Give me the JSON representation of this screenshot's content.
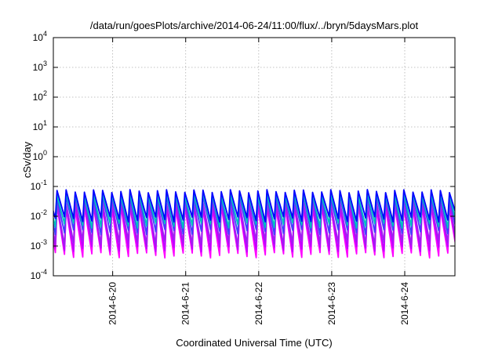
{
  "chart_data": {
    "type": "line",
    "title": "/data/run/goesPlots/archive/2014-06-24/11:00/flux/../bryn/5daysMars.plot",
    "xlabel": "Coordinated Universal Time (UTC)",
    "ylabel": "cSv/day",
    "y_scale": "log",
    "ylim": [
      0.0001,
      10000
    ],
    "y_ticks": [
      {
        "base": "10",
        "exp": "-4",
        "value": 0.0001
      },
      {
        "base": "10",
        "exp": "-3",
        "value": 0.001
      },
      {
        "base": "10",
        "exp": "-2",
        "value": 0.01
      },
      {
        "base": "10",
        "exp": "-1",
        "value": 0.1
      },
      {
        "base": "10",
        "exp": "0",
        "value": 1
      },
      {
        "base": "10",
        "exp": "1",
        "value": 10
      },
      {
        "base": "10",
        "exp": "2",
        "value": 100
      },
      {
        "base": "10",
        "exp": "3",
        "value": 1000
      },
      {
        "base": "10",
        "exp": "4",
        "value": 10000
      }
    ],
    "x_range": [
      "2014-06-19T04:30",
      "2014-06-24T16:30"
    ],
    "x_ticks": [
      {
        "label": "2014-6-20",
        "date": "2014-06-20"
      },
      {
        "label": "2014-6-21",
        "date": "2014-06-21"
      },
      {
        "label": "2014-6-22",
        "date": "2014-06-22"
      },
      {
        "label": "2014-6-23",
        "date": "2014-06-23"
      },
      {
        "label": "2014-6-24",
        "date": "2014-06-24"
      }
    ],
    "grid": true,
    "sawtooth_period_hours": 3,
    "series": [
      {
        "color": "#ff00ff",
        "peak": 0.02,
        "trough": 0.0005
      },
      {
        "color": "#c000ff",
        "peak": 0.025,
        "trough": 0.0008
      },
      {
        "color": "#a020f0",
        "peak": 0.03,
        "trough": 0.0013
      },
      {
        "color": "#4040ff",
        "peak": 0.045,
        "trough": 0.003
      },
      {
        "color": "#00c0c0",
        "peak": 0.055,
        "trough": 0.005
      },
      {
        "color": "#0000ff",
        "peak": 0.07,
        "trough": 0.008
      }
    ]
  }
}
